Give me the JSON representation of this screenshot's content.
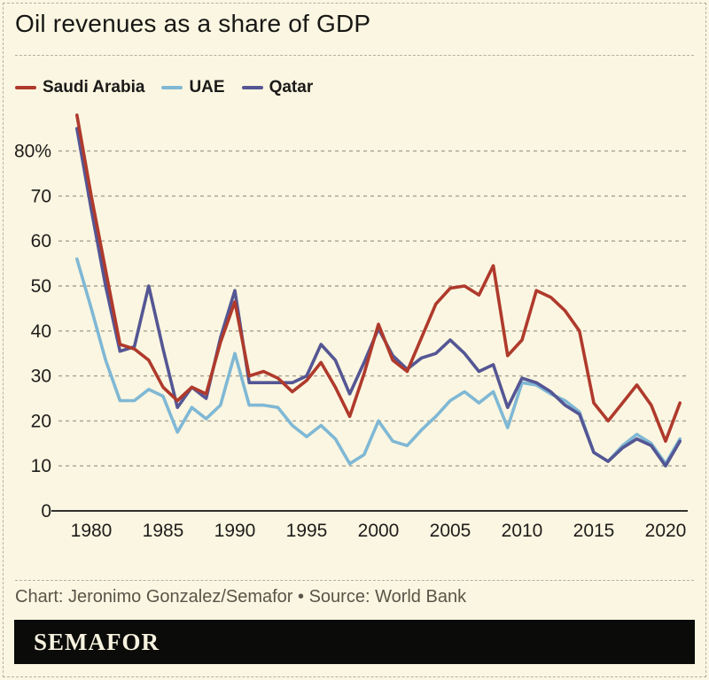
{
  "page": {
    "title": "Oil revenues as a share of GDP",
    "caption": "Chart: Jeronimo Gonzalez/Semafor • Source: World Bank",
    "logo": "SEMAFOR",
    "colors": {
      "background": "#fbf6e1",
      "title_text": "#171715",
      "caption_text": "#595549",
      "border_dash": "#b4b0a3",
      "logo_bar_bg": "#0b0b09",
      "logo_text": "#f6f2df",
      "tick_text": "#1e1d1b"
    }
  },
  "chart_data": {
    "type": "line",
    "title": "Oil revenues as a share of GDP",
    "xlabel": "",
    "ylabel": "Oil revenues as a share of GDP (%)",
    "grid": "horizontal-dashed",
    "legend_position": "top-left",
    "grid_color": "#a5a193",
    "axis_color": "#32312d",
    "xlim": [
      1978.6,
      2021.8
    ],
    "ylim": [
      0,
      90
    ],
    "x": [
      1979,
      1980,
      1981,
      1982,
      1983,
      1984,
      1985,
      1986,
      1987,
      1988,
      1989,
      1990,
      1991,
      1992,
      1993,
      1994,
      1995,
      1996,
      1997,
      1998,
      1999,
      2000,
      2001,
      2002,
      2003,
      2004,
      2005,
      2006,
      2007,
      2008,
      2009,
      2010,
      2011,
      2012,
      2013,
      2014,
      2015,
      2016,
      2017,
      2018,
      2019,
      2020,
      2021
    ],
    "series": [
      {
        "name": "Saudi Arabia",
        "color": "#af3a2c",
        "values": [
          88,
          70,
          53.5,
          37,
          36,
          33.5,
          27.5,
          24.5,
          27.5,
          26,
          37.5,
          46.5,
          30,
          31,
          29.5,
          26.5,
          29,
          33,
          27.5,
          21,
          30.5,
          41.5,
          33.5,
          31,
          38.5,
          46,
          49.5,
          50,
          48,
          54.5,
          34.5,
          38,
          49,
          47.5,
          44.5,
          40,
          24,
          20,
          24,
          28,
          23.5,
          15.5,
          24
        ]
      },
      {
        "name": "UAE",
        "color": "#7fb8d5",
        "values": [
          56,
          45,
          33.5,
          24.5,
          24.5,
          27,
          25.5,
          17.5,
          23,
          20.5,
          23.5,
          35,
          23.5,
          23.5,
          23,
          19,
          16.5,
          19,
          16,
          10.5,
          12.5,
          20,
          15.5,
          14.5,
          18,
          21,
          24.5,
          26.5,
          24,
          26.5,
          18.5,
          28.5,
          28,
          26,
          24.5,
          22,
          13,
          11,
          14.5,
          17,
          15,
          10.5,
          16
        ]
      },
      {
        "name": "Qatar",
        "color": "#545694",
        "values": [
          85,
          67,
          50,
          35.5,
          36.5,
          50,
          36,
          23,
          27.5,
          25,
          38.5,
          49,
          28.5,
          28.5,
          28.5,
          28.5,
          30,
          37,
          33.5,
          26,
          33,
          40.5,
          34.5,
          31.5,
          34,
          35,
          38,
          35,
          31,
          32.5,
          23,
          29.5,
          28.5,
          26.5,
          23.5,
          21.5,
          13,
          11,
          14,
          16,
          14.5,
          10,
          15.5
        ]
      }
    ],
    "yticks": [
      {
        "value": 0,
        "label": "0"
      },
      {
        "value": 10,
        "label": "10"
      },
      {
        "value": 20,
        "label": "20"
      },
      {
        "value": 30,
        "label": "30"
      },
      {
        "value": 40,
        "label": "40"
      },
      {
        "value": 50,
        "label": "50"
      },
      {
        "value": 60,
        "label": "60"
      },
      {
        "value": 70,
        "label": "70"
      },
      {
        "value": 80,
        "label": "80%"
      }
    ],
    "xticks": [
      {
        "value": 1980,
        "label": "1980"
      },
      {
        "value": 1985,
        "label": "1985"
      },
      {
        "value": 1990,
        "label": "1990"
      },
      {
        "value": 1995,
        "label": "1995"
      },
      {
        "value": 2000,
        "label": "2000"
      },
      {
        "value": 2005,
        "label": "2005"
      },
      {
        "value": 2010,
        "label": "2010"
      },
      {
        "value": 2015,
        "label": "2015"
      },
      {
        "value": 2020,
        "label": "2020"
      }
    ]
  }
}
